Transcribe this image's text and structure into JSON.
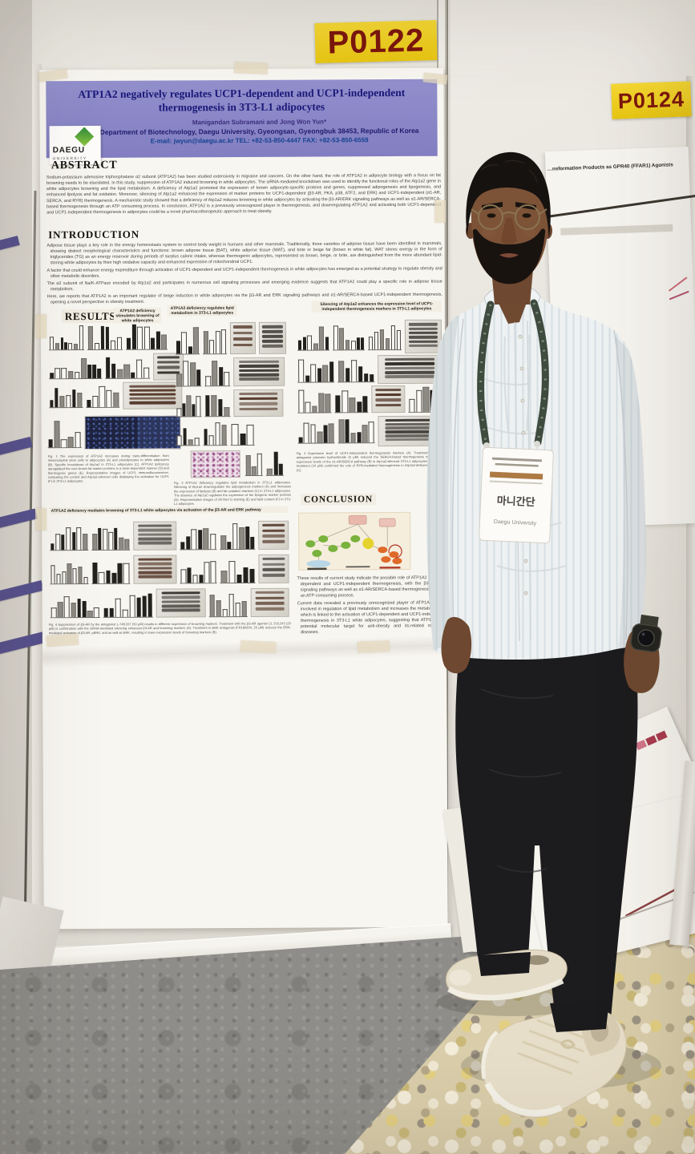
{
  "signs": {
    "left": "P0122",
    "right": "P0124"
  },
  "poster": {
    "title": "ATP1A2 negatively regulates UCP1-dependent and UCP1-independent thermogenesis in 3T3-L1 adipocytes",
    "authors": "Manigandan Subramani and Jong Won Yun*",
    "affiliation": "Department of Biotechnology, Daegu University, Gyeongsan, Gyeongbuk 38453, Republic of Korea",
    "contact": "E-mail: jwyun@daegu.ac.kr   TEL: +82-53-850-4447   FAX: +82-53-850-6559",
    "logo": {
      "line1": "DAEGU",
      "line2": "UNIVERSITY"
    },
    "abstract": {
      "heading": "ABSTRACT",
      "body": "Sodium-potassium adenosine triphosphatase α2 subunit (ATP1A2) has been studied extensively in migraine and cancers. On the other hand, the role of ATP1A2 in adipocyte biology with a focus on fat browning needs to be elucidated. In this study, suppression of ATP1A2 induced browning in white adipocytes. The siRNA-mediated knockdown was used to identify the functional roles of the Atp1a2 gene in white adipocytes browning and the lipid metabolism. A deficiency of Atp1a2 promoted the expression of brown adipocyte-specific proteins and genes, suppressed adipogenesis and lipogenesis, and enhanced lipolysis and fat oxidation. Moreover, silencing of Atp1a2 enhanced the expression of marker proteins for UCP1-dependent (β3-AR, PKA, p38, ATF2, and ERK) and UCP1-independent (α1-AR, SERCA, and RYR) thermogenesis. A mechanistic study showed that a deficiency of Atp1a2 induces browning in white adipocytes by activating the β3-AR/ERK signaling pathways as well as α1-AR/SERCA-based thermogenesis through an ATP consuming process. In conclusion, ATP1A2 is a previously unrecognized player in thermogenesis, and downregulating ATP1A2 and activating both UCP1-dependent and UCP1-independent thermogenesis in adipocytes could be a novel pharmacotherapeutic approach to treat obesity."
    },
    "introduction": {
      "heading": "INTRODUCTION",
      "bullets": [
        "Adipose tissue plays a key role in the energy homeostasis system to control body weight in humans and other mammals. Traditionally, three varieties of adipose tissue have been identified in mammals, showing distinct morphological characteristics and functions: brown adipose tissue (BAT), white adipose tissue (WAT), and brite or beige fat (brown in white fat). WAT stores energy in the form of triglycerides (TG) as an energy reservoir during periods of surplus caloric intake, whereas thermogenic adipocytes, represented as brown, beige, or brite, are distinguished from the more abundant lipid-storing white adipocytes by their high oxidative capacity and enhanced expression of mitochondrial UCP1.",
        "A factor that could enhance energy expenditure through activation of UCP1-dependent and UCP1-independent thermogenesis in white adipocytes has emerged as a potential strategy to regulate obesity and other metabolic disorders.",
        "The α2 subunit of Na/K-ATPase encoded by Atp1a2 and participates in numerous cell signaling processes and emerging evidence suggests that ATP1A2 could play a specific role in adipose tissue metabolism.",
        "Here, we reports that ATP1A2 is an important regulator of beige induction in white adipocytes via the β3-AR and ERK signaling pathways and α1-AR/SERCA-based UCP1-independent thermogenesis, opening a novel perspective in obesity treatment."
      ]
    },
    "results": {
      "heading": "RESULTS",
      "subheadings": [
        "ATP1A2 deficiency stimulates browning of white adipocytes",
        "ATP1A2 deficiency regulates lipid metabolism in 3T3-L1 adipocytes",
        "Silencing of Atp1a2 enhances the expression level of UCP1-independent thermogenesis markers in 3T3-L1 adipocytes",
        "ATP1A2 deficiency mediates browning of 3T3-L1 white adipocytes via activation of the β3-AR and ERK pathway"
      ],
      "captions": {
        "fig1": "Fig. 1 The expression of ATP1A2 increases during trans-differentiation from mesenchymal stem cells to adipocytes (A) and preadipocytes to white adipocytes (B). Specific knockdown of Atp1a2 in 3T3-L1 adipocytes (C). ATP1A2 deficiency upregulated the core brown fat marker proteins in a dose-dependent manner (D) and thermogenic genes (E). Representative images of UCP1 immunofluorescence, comparing the control and Atp1a2-silenced cells displaying the activation for UCP1 (F) in 3T3-L1 adipocytes.",
        "fig2": "Fig. 2 ATP1A2 deficiency regulates lipid metabolism in 3T3-L1 adipocytes. Silencing of Atp1a2 downregulates the adipogenesis markers (A) and increases the expression of lipolysis (B) and fat oxidation markers (C) in 3T3-L1 adipocytes. The absence of Atp1a2 regulates the expression of the lipogenic marker proteins (D). Representative images of Oil Red O staining (E) and lipid content (F) in 3T3-L1 adipocytes.",
        "fig3": "Fig. 3 Expression level of UCP1-independent thermogenesis markers (A). Treatment of α1-AR antagonist prazosin hydrochloride (5 μM) reduced the SERCA-based thermogenesis markers and expression levels of the α1-AR/SERCA pathway (B) in Atp1a2-silenced 3T3-L1 adipocytes. Ryanodine treatment (10 μM) confirmed the role of RYR-mediated thermogenesis in Atp1a2-deficient adipocytes (C).",
        "fig4": "Fig. 4 Suppression of β3-AR by the antagonist L-748,337 (50 μM) results in different expression of browning markers. Treatment with the β3-AR agonist CL 316,243 (20 μM) in combination with the siRNA-mediated silencing enhances β3-AR and browning markers (A). Treatment in ERK antagonist (FR180204, 25 μM) reduces the ERK-mediated activation of β3-AR, pERK, and as well as ERK, resulting in lower expression levels of browning markers (B)."
      }
    },
    "conclusion": {
      "heading": "CONCLUSION",
      "bullets": [
        "These results of current study indicate the possible role of ATP1A2 in UCP1-dependent and UCP1-independent thermogenesis, with the β3-AR/ERK signaling pathways as well as α1-AR/SERCA-based thermogenesis through an ATP-consuming process.",
        "Current data revealed a previously unrecognized player of ATP1A2 that is involved in regulation of lipid metabolism and increases the metabolic rate, which is linked to the activation of UCP1-dependent and UCP1-independent thermogenesis in 3T3-L1 white adipocytes, suggesting that ATP1A2 is a potential molecular target for anti-obesity and its-related metabolic diseases."
      ]
    }
  },
  "right_poster": {
    "title": "…nsformation Products as GPR40 (FFAR1) Agonists"
  },
  "badge": {
    "name": "마니간단",
    "org": "Daegu University"
  },
  "colors": {
    "sign_bg": "#f2cf25",
    "sign_text": "#7b150c",
    "banner_purple": "#8b87c7",
    "title_text": "#1a1879",
    "poster_paper": "#f8f6f1",
    "wall": "#e6e3dc",
    "lanyard_green": "#3f4b3e",
    "badge_stripe": "#ad7a44",
    "carpet_gray": "#8e8d89",
    "rug_base": "#d9cdaa",
    "shirt": "#eef1f2",
    "pants": "#1c1b1d",
    "sneakers": "#e4dbc7"
  }
}
